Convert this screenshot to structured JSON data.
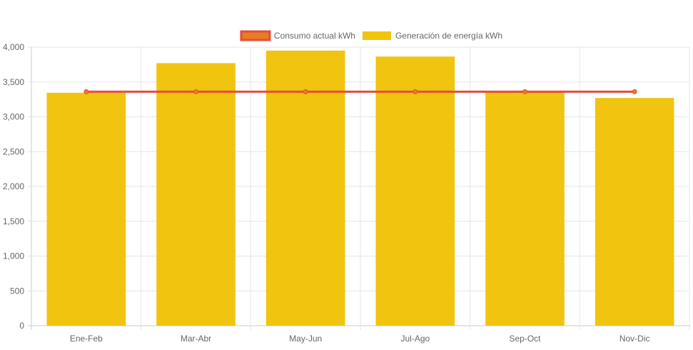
{
  "chart_data": {
    "type": "bar",
    "categories": [
      "Ene-Feb",
      "Mar-Abr",
      "May-Jun",
      "Jul-Ago",
      "Sep-Oct",
      "Nov-Dic"
    ],
    "series": [
      {
        "name": "Generación de energía kWh",
        "type": "bar",
        "values": [
          3345,
          3770,
          3950,
          3865,
          3360,
          3270
        ],
        "color": "#f1c40f"
      },
      {
        "name": "Consumo actual kWh",
        "type": "line",
        "values": [
          3360,
          3360,
          3360,
          3360,
          3360,
          3360
        ],
        "color": "#e74c3c",
        "fill_color": "#e67e22"
      }
    ],
    "legend_order": [
      "Consumo actual kWh",
      "Generación de energía kWh"
    ],
    "y_ticks": [
      "0",
      "500",
      "1,000",
      "1,500",
      "2,000",
      "2,500",
      "3,000",
      "3,500",
      "4,000"
    ],
    "ylim": [
      0,
      4000
    ],
    "legend_position": "top-center",
    "grid": true
  }
}
